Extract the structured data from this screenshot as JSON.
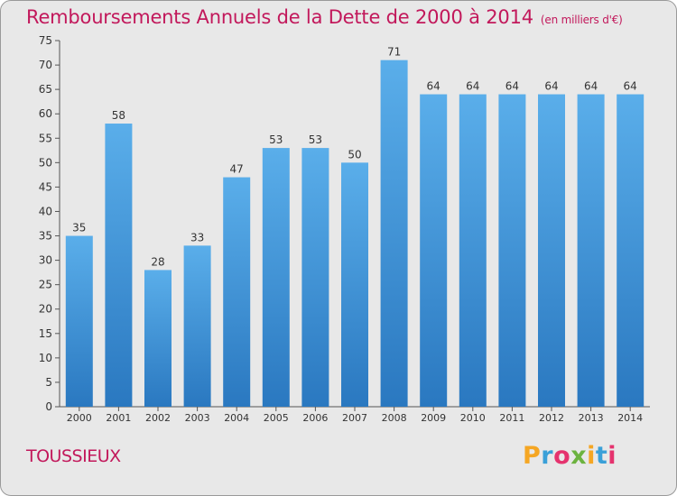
{
  "chart_data": {
    "type": "bar",
    "title": "Remboursements Annuels de la Dette de 2000 à 2014",
    "unit_note": "(en milliers d'€)",
    "categories": [
      "2000",
      "2001",
      "2002",
      "2003",
      "2004",
      "2005",
      "2006",
      "2007",
      "2008",
      "2009",
      "2010",
      "2011",
      "2012",
      "2013",
      "2014"
    ],
    "values": [
      35,
      58,
      28,
      33,
      47,
      53,
      53,
      50,
      71,
      64,
      64,
      64,
      64,
      64,
      64
    ],
    "ylim": [
      0,
      75
    ],
    "yticks": [
      0,
      5,
      10,
      15,
      20,
      25,
      30,
      35,
      40,
      45,
      50,
      55,
      60,
      65,
      70,
      75
    ],
    "grid": false,
    "bar_color": "#3a8fd6",
    "xlabel": "",
    "ylabel": ""
  },
  "footer": {
    "commune": "TOUSSIEUX",
    "logo_text": "Proxiti",
    "logo_colors": [
      "#f5a623",
      "#3aa0d8",
      "#e5336e",
      "#6cb33f",
      "#f5a623",
      "#3aa0d8",
      "#e5336e"
    ]
  },
  "colors": {
    "accent": "#c2185b",
    "background": "#e8e8e8"
  }
}
